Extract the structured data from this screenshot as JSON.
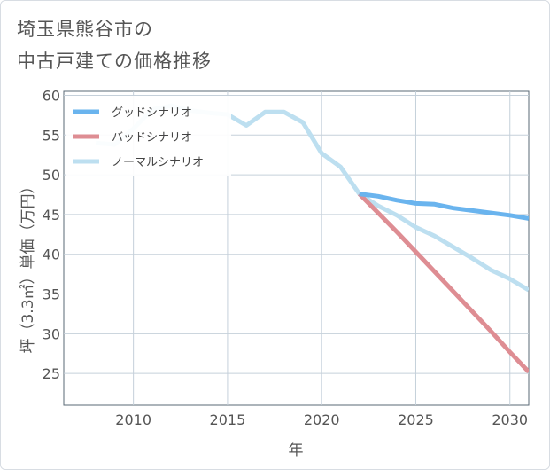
{
  "title_lines": [
    "埼玉県熊谷市の",
    "中古戸建ての価格推移"
  ],
  "chart_data": {
    "type": "line",
    "xlabel": "年",
    "ylabel": "坪（3.3㎡）単価（万円）",
    "xlim": [
      2006.3,
      2031.0
    ],
    "ylim": [
      21.0,
      60.5
    ],
    "x_ticks": [
      2010,
      2015,
      2020,
      2025,
      2030
    ],
    "y_ticks": [
      25,
      30,
      35,
      40,
      45,
      50,
      55,
      60
    ],
    "grid": true,
    "legend_position": "top-left",
    "series": [
      {
        "name": "グッドシナリオ",
        "color": "#6ab4ee",
        "x": [
          2022,
          2023,
          2024,
          2025,
          2026,
          2027,
          2028,
          2029,
          2030,
          2031
        ],
        "y": [
          47.6,
          47.3,
          46.8,
          46.4,
          46.3,
          45.8,
          45.5,
          45.2,
          44.9,
          44.5
        ]
      },
      {
        "name": "バッドシナリオ",
        "color": "#de8d93",
        "x": [
          2022,
          2023,
          2024,
          2025,
          2026,
          2027,
          2028,
          2029,
          2030,
          2031
        ],
        "y": [
          47.6,
          45.2,
          42.8,
          40.3,
          37.8,
          35.3,
          32.8,
          30.3,
          27.7,
          25.2
        ]
      },
      {
        "name": "ノーマルシナリオ",
        "color": "#bddff0",
        "x": [
          2008,
          2009,
          2010,
          2011,
          2012,
          2013,
          2014,
          2015,
          2016,
          2017,
          2018,
          2019,
          2020,
          2021,
          2022,
          2023,
          2024,
          2025,
          2026,
          2027,
          2028,
          2029,
          2030,
          2031
        ],
        "y": [
          54.0,
          53.8,
          55.8,
          58.2,
          58.7,
          58.1,
          57.8,
          57.6,
          56.2,
          57.9,
          57.9,
          56.6,
          52.7,
          51.0,
          47.6,
          46.1,
          44.9,
          43.4,
          42.3,
          40.9,
          39.5,
          38.0,
          36.9,
          35.5
        ]
      }
    ]
  }
}
